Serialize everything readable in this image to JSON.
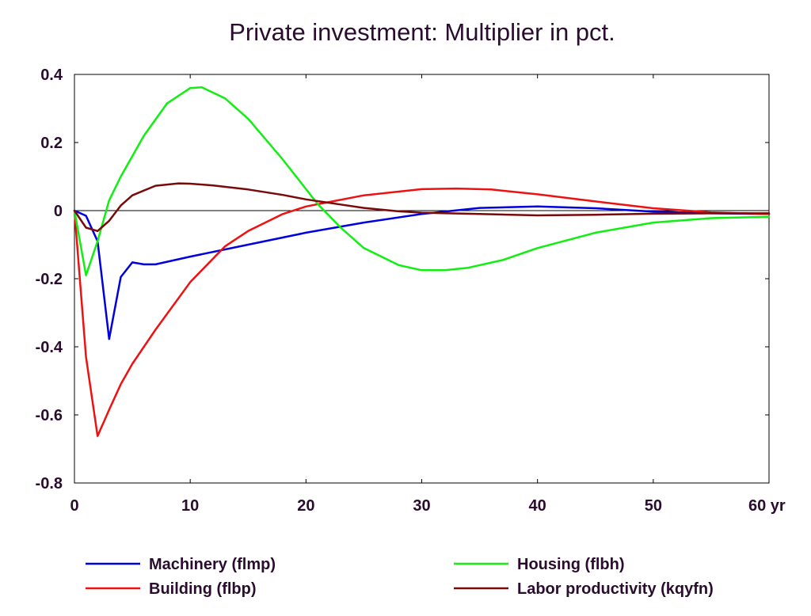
{
  "chart_data": {
    "type": "line",
    "title": "Private investment: Multiplier in pct.",
    "xlabel": "",
    "ylabel": "",
    "x_unit": "yr",
    "xlim": [
      0,
      60
    ],
    "ylim": [
      -0.8,
      0.4
    ],
    "x_ticks": [
      0,
      10,
      20,
      30,
      40,
      50,
      60
    ],
    "y_ticks": [
      0.4,
      0.2,
      0,
      -0.2,
      -0.4,
      -0.6,
      -0.8
    ],
    "x_tick_labels": [
      "0",
      "10",
      "20",
      "30",
      "40",
      "50",
      "60 yr"
    ],
    "y_tick_labels": [
      "0.4",
      "0.2",
      "0",
      "-0.2",
      "-0.4",
      "-0.6",
      "-0.8"
    ],
    "grid": false,
    "zero_line": true,
    "legend_position": "bottom",
    "series": [
      {
        "name": "Machinery (flmp)",
        "color": "#0000dd",
        "x": [
          0,
          1,
          2,
          3,
          4,
          5,
          6,
          7,
          10,
          15,
          20,
          25,
          30,
          35,
          40,
          45,
          50,
          55,
          60
        ],
        "y": [
          0,
          -0.015,
          -0.09,
          -0.377,
          -0.195,
          -0.152,
          -0.158,
          -0.158,
          -0.135,
          -0.1,
          -0.065,
          -0.035,
          -0.01,
          0.008,
          0.012,
          0.007,
          -0.003,
          -0.008,
          -0.01
        ]
      },
      {
        "name": "Building (flbp)",
        "color": "#ee1111",
        "x": [
          0,
          1,
          2,
          3,
          4,
          5,
          7,
          10,
          13,
          15,
          18,
          20,
          25,
          30,
          33,
          36,
          40,
          45,
          50,
          55,
          60
        ],
        "y": [
          0,
          -0.43,
          -0.662,
          -0.585,
          -0.51,
          -0.45,
          -0.35,
          -0.21,
          -0.105,
          -0.06,
          -0.01,
          0.012,
          0.045,
          0.063,
          0.065,
          0.062,
          0.048,
          0.027,
          0.007,
          -0.005,
          -0.01
        ]
      },
      {
        "name": "Housing (flbh)",
        "color": "#11ee11",
        "x": [
          0,
          1,
          2,
          3,
          4,
          6,
          8,
          10,
          11,
          13,
          15,
          18,
          21,
          23,
          25,
          28,
          30,
          32,
          34,
          37,
          40,
          45,
          50,
          55,
          60
        ],
        "y": [
          0,
          -0.19,
          -0.09,
          0.03,
          0.1,
          0.22,
          0.315,
          0.36,
          0.362,
          0.33,
          0.27,
          0.15,
          0.02,
          -0.05,
          -0.11,
          -0.16,
          -0.175,
          -0.175,
          -0.168,
          -0.145,
          -0.11,
          -0.065,
          -0.035,
          -0.022,
          -0.018
        ]
      },
      {
        "name": "Labor productivity (kqyfn)",
        "color": "#7a0a0a",
        "x": [
          0,
          1,
          2,
          3,
          4,
          5,
          7,
          9,
          10,
          12,
          15,
          18,
          20,
          23,
          25,
          28,
          30,
          35,
          40,
          45,
          50,
          55,
          60
        ],
        "y": [
          0,
          -0.05,
          -0.06,
          -0.03,
          0.015,
          0.045,
          0.073,
          0.08,
          0.079,
          0.074,
          0.062,
          0.046,
          0.033,
          0.018,
          0.008,
          -0.002,
          -0.006,
          -0.01,
          -0.014,
          -0.012,
          -0.009,
          -0.008,
          -0.008
        ]
      }
    ]
  }
}
